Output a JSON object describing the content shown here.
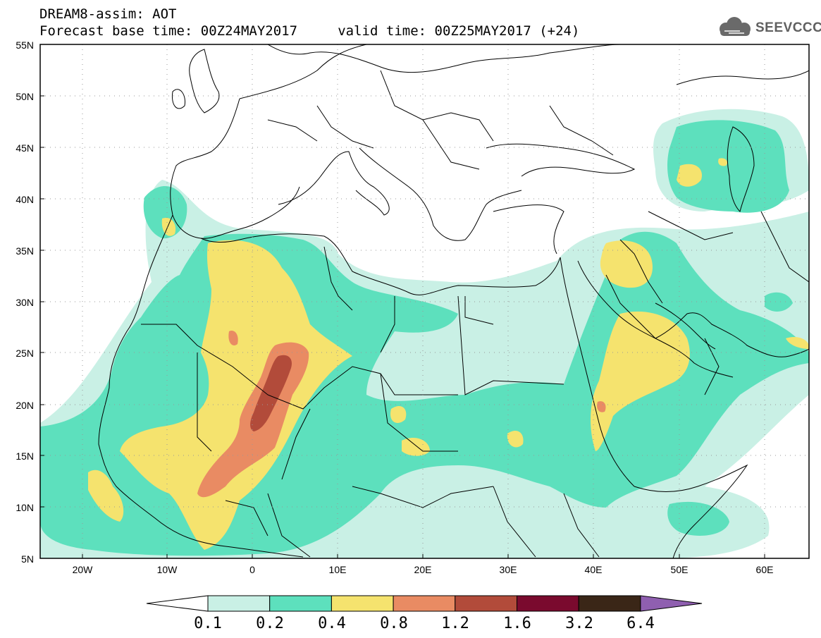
{
  "title": {
    "line1": "DREAM8-assim: AOT",
    "line2": "Forecast base time: 00Z24MAY2017     valid time: 00Z25MAY2017 (+24)"
  },
  "logo": {
    "text": "SEEVCCC",
    "icon": "cloud-icon"
  },
  "map": {
    "lat_range": [
      5,
      55
    ],
    "lon_range": [
      -25,
      65
    ],
    "y_ticks": [
      "55N",
      "50N",
      "45N",
      "40N",
      "35N",
      "30N",
      "25N",
      "20N",
      "15N",
      "10N",
      "5N"
    ],
    "x_ticks": [
      "20W",
      "10W",
      "0",
      "10E",
      "20E",
      "30E",
      "40E",
      "50E",
      "60E"
    ]
  },
  "colorbar": {
    "levels": [
      "0.1",
      "0.2",
      "0.4",
      "0.8",
      "1.2",
      "1.6",
      "3.2",
      "6.4"
    ],
    "colors": [
      "#ffffff",
      "#c9f0e5",
      "#5de0bd",
      "#f5e36e",
      "#e98b63",
      "#b24b3a",
      "#7a0a2e",
      "#3a2617",
      "#8f5fb0"
    ]
  }
}
